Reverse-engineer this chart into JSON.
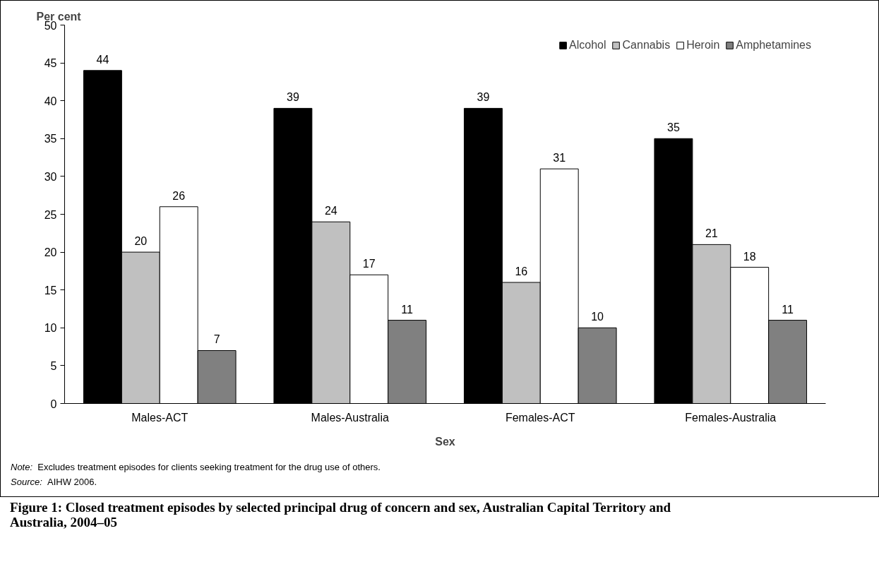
{
  "chart_data": {
    "type": "bar",
    "title": "Figure 1: Closed treatment episodes by selected principal drug of concern and sex, Australian Capital Territory and Australia, 2004–05",
    "ylabel": "Per cent",
    "xlabel": "Sex",
    "categories": [
      "Males-ACT",
      "Males-Australia",
      "Females-ACT",
      "Females-Australia"
    ],
    "series": [
      {
        "name": "Alcohol",
        "color": "#000000",
        "values": [
          44,
          39,
          39,
          35
        ]
      },
      {
        "name": "Cannabis",
        "color": "#c0c0c0",
        "values": [
          20,
          24,
          16,
          21
        ]
      },
      {
        "name": "Heroin",
        "color": "#ffffff",
        "values": [
          26,
          17,
          31,
          18
        ]
      },
      {
        "name": "Amphetamines",
        "color": "#808080",
        "values": [
          7,
          11,
          10,
          11
        ]
      }
    ],
    "ylim": [
      0,
      50
    ],
    "yticks": [
      0,
      5,
      10,
      15,
      20,
      25,
      30,
      35,
      40,
      45,
      50
    ],
    "grid": false,
    "legend": "top right",
    "data_labels": true,
    "annotations": [
      "Note:  Excludes treatment episodes for clients seeking treatment for the drug use of others.",
      "Source: AIHW 2006."
    ]
  }
}
